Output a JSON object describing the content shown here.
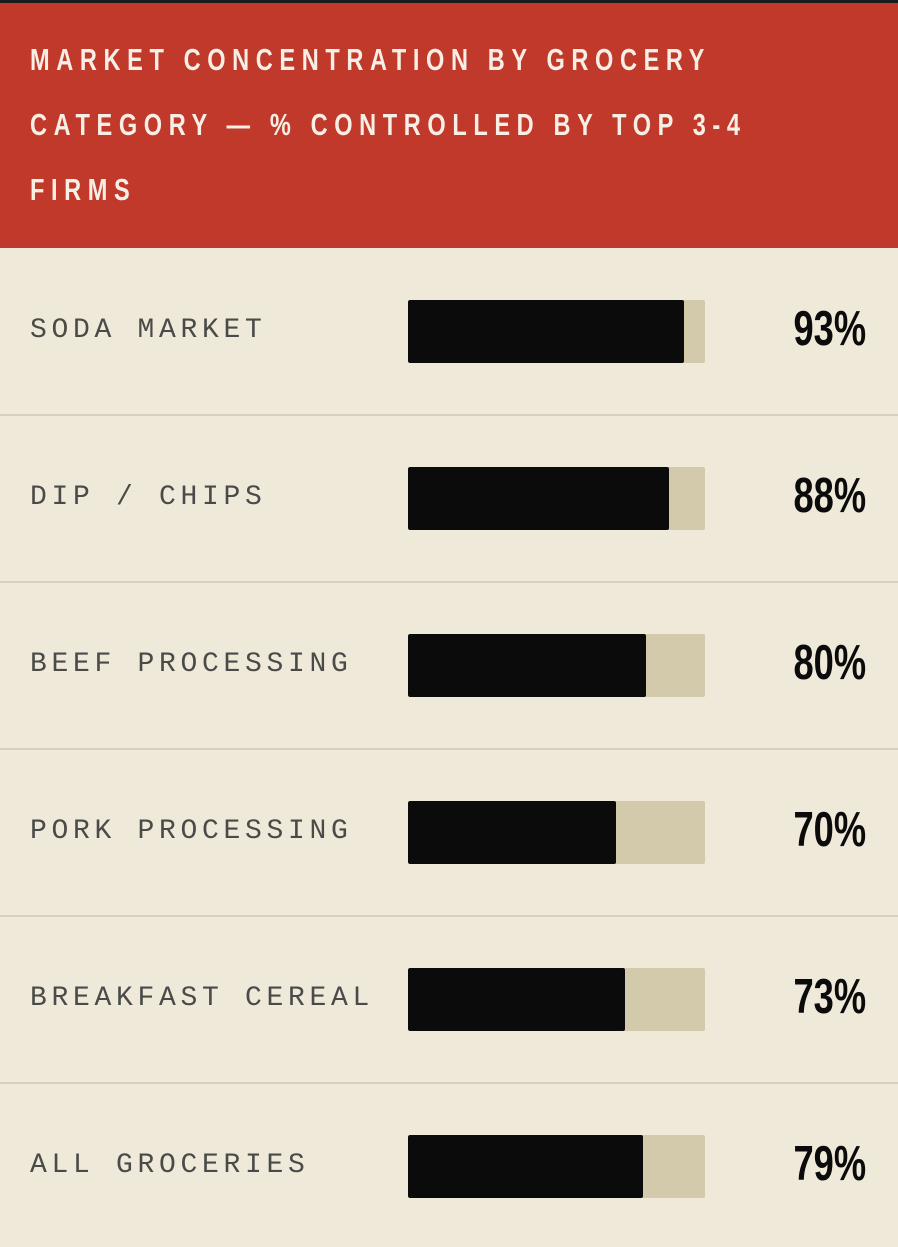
{
  "header": {
    "title_lines": [
      "MARKET CONCENTRATION BY GROCERY",
      "CATEGORY — % CONTROLLED BY TOP 3-4",
      "FIRMS"
    ]
  },
  "chart_data": {
    "type": "bar",
    "title": "MARKET CONCENTRATION BY GROCERY CATEGORY — % CONTROLLED BY TOP 3-4 FIRMS",
    "categories": [
      "SODA MARKET",
      "DIP / CHIPS",
      "BEEF PROCESSING",
      "PORK PROCESSING",
      "BREAKFAST CEREAL",
      "ALL GROCERIES"
    ],
    "values": [
      93,
      88,
      80,
      70,
      73,
      79
    ],
    "value_labels": [
      "93%",
      "88%",
      "80%",
      "70%",
      "73%",
      "79%"
    ],
    "xlim": [
      0,
      100
    ],
    "orientation": "horizontal",
    "grid": false,
    "legend": "none"
  },
  "colors": {
    "header_bg": "#c0392b",
    "page_bg": "#efe9d9",
    "bar_fill": "#0b0b0b",
    "bar_track": "#d3c9ab",
    "divider": "#d7d0bb"
  }
}
